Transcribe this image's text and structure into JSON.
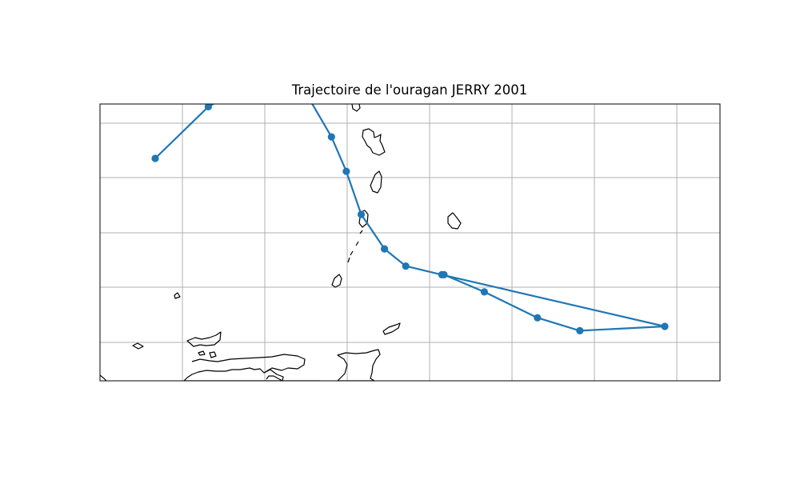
{
  "title": "Trajectoire de l'ouragan JERRY 2001",
  "colors": {
    "track": "#1f77b4",
    "grid": "#b0b0b0",
    "coast": "#000000"
  },
  "chart_data": {
    "type": "map-track",
    "title": "Trajectoire de l'ouragan JERRY 2001",
    "storm": "JERRY",
    "year": 2001,
    "grid": true,
    "track": [
      {
        "lon": -51.0,
        "lat": 13.4
      },
      {
        "lon": -53.5,
        "lat": 12.2
      },
      {
        "lon": -56.0,
        "lat": 11.5
      },
      {
        "lon": -58.0,
        "lat": 11.8
      },
      {
        "lon": -59.3,
        "lat": 12.9
      },
      {
        "lon": -60.0,
        "lat": 13.7
      },
      {
        "lon": -60.7,
        "lat": 14.7
      },
      {
        "lon": -61.8,
        "lat": 15.5
      },
      {
        "lon": -62.8,
        "lat": 15.9
      },
      {
        "lon": -64.5,
        "lat": 16.1
      },
      {
        "lon": -75.0,
        "lat": 17.3
      },
      {
        "lon": -71.0,
        "lat": 17.4
      },
      {
        "lon": -69.0,
        "lat": 17.1
      },
      {
        "lon": -66.5,
        "lat": 16.5
      },
      {
        "lon": -64.6,
        "lat": 16.1
      }
    ]
  }
}
